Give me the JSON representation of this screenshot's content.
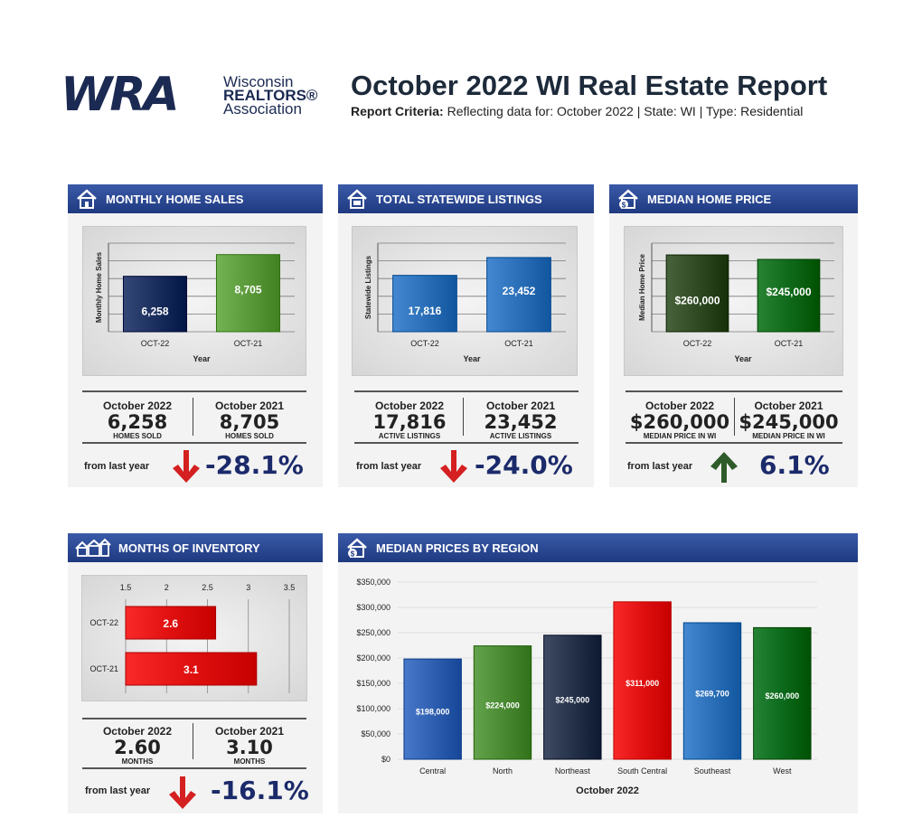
{
  "logo": {
    "wra": "WRA",
    "line1": "Wisconsin",
    "line2": "REALTORS®",
    "line3": "Association"
  },
  "header": {
    "title": "October 2022 WI Real Estate Report",
    "criteria_label": "Report Criteria:",
    "criteria_text": "Reflecting data for: October 2022 | State: WI | Type: Residential"
  },
  "colors": {
    "header_blue": "#2a4a96",
    "navy_text": "#1b2a6a",
    "down_red": "#d42020",
    "up_green": "#2f5a2a"
  },
  "panels": {
    "sales": {
      "title": "MONTHLY HOME SALES",
      "icon": "house-icon",
      "col1": {
        "label": "October 2022",
        "value": "6,258",
        "sub": "HOMES SOLD"
      },
      "col2": {
        "label": "October 2021",
        "value": "8,705",
        "sub": "HOMES SOLD"
      },
      "from_last": "from last year",
      "change": "-28.1%",
      "direction": "down"
    },
    "listings": {
      "title": "TOTAL STATEWIDE LISTINGS",
      "icon": "house-sign-icon",
      "col1": {
        "label": "October 2022",
        "value": "17,816",
        "sub": "ACTIVE LISTINGS"
      },
      "col2": {
        "label": "October 2021",
        "value": "23,452",
        "sub": "ACTIVE LISTINGS"
      },
      "from_last": "from last year",
      "change": "-24.0%",
      "direction": "down"
    },
    "price": {
      "title": "MEDIAN HOME PRICE",
      "icon": "house-dollar-icon",
      "col1": {
        "label": "October 2022",
        "value": "$260,000",
        "sub": "MEDIAN PRICE IN WI"
      },
      "col2": {
        "label": "October 2021",
        "value": "$245,000",
        "sub": "MEDIAN PRICE IN WI"
      },
      "from_last": "from last year",
      "change": "6.1%",
      "direction": "up"
    },
    "inventory": {
      "title": "MONTHS OF INVENTORY",
      "icon": "houses-icon",
      "col1": {
        "label": "October 2022",
        "value": "2.60",
        "sub": "MONTHS"
      },
      "col2": {
        "label": "October 2021",
        "value": "3.10",
        "sub": "MONTHS"
      },
      "from_last": "from last year",
      "change": "-16.1%",
      "direction": "down"
    },
    "region": {
      "title": "MEDIAN PRICES BY REGION",
      "icon": "house-dollar-icon"
    }
  },
  "chart_data": [
    {
      "id": "sales",
      "type": "bar",
      "categories": [
        "OCT-22",
        "OCT-21"
      ],
      "values": [
        6258,
        8705
      ],
      "labels": [
        "6,258",
        "8,705"
      ],
      "colors": [
        "#1b2f5e",
        "#5a9a3a"
      ],
      "xlabel": "Year",
      "ylabel": "Monthly Home Sales",
      "ylim": [
        0,
        10000
      ]
    },
    {
      "id": "listings",
      "type": "bar",
      "categories": [
        "OCT-22",
        "OCT-21"
      ],
      "values": [
        17816,
        23452
      ],
      "labels": [
        "17,816",
        "23,452"
      ],
      "colors": [
        "#2a6fb8",
        "#2a6fb8"
      ],
      "xlabel": "Year",
      "ylabel": "Statewide Listings",
      "ylim": [
        0,
        28000
      ]
    },
    {
      "id": "price",
      "type": "bar",
      "categories": [
        "OCT-22",
        "OCT-21"
      ],
      "values": [
        260000,
        245000
      ],
      "labels": [
        "$260,000",
        "$245,000"
      ],
      "colors": [
        "#2f4a22",
        "#0f6a1a"
      ],
      "xlabel": "Year",
      "ylabel": "Median Home Price",
      "ylim": [
        0,
        300000
      ]
    },
    {
      "id": "inventory",
      "type": "bar",
      "orientation": "horizontal",
      "categories": [
        "OCT-22",
        "OCT-21"
      ],
      "values": [
        2.6,
        3.1
      ],
      "labels": [
        "2.6",
        "3.1"
      ],
      "ticks": [
        "1.5",
        "2",
        "2.5",
        "3",
        "3.5"
      ],
      "xlim": [
        1.5,
        3.5
      ],
      "colors": [
        "#e01010",
        "#e01010"
      ]
    },
    {
      "id": "region",
      "type": "bar",
      "title": "",
      "xlabel": "October 2022",
      "categories": [
        "Central",
        "North",
        "Northeast",
        "South Central",
        "Southeast",
        "West"
      ],
      "values": [
        198000,
        224000,
        245000,
        311000,
        269700,
        260000
      ],
      "labels": [
        "$198,000",
        "$224,000",
        "$245,000",
        "$311,000",
        "$269,700",
        "$260,000"
      ],
      "colors": [
        "#2f5fb0",
        "#4a8a32",
        "#26324a",
        "#e01010",
        "#2a6fb8",
        "#0c6a1c"
      ],
      "yticks": [
        "$0",
        "$50,000",
        "$100,000",
        "$150,000",
        "$200,000",
        "$250,000",
        "$300,000",
        "$350,000"
      ],
      "ylim": [
        0,
        350000
      ]
    }
  ]
}
